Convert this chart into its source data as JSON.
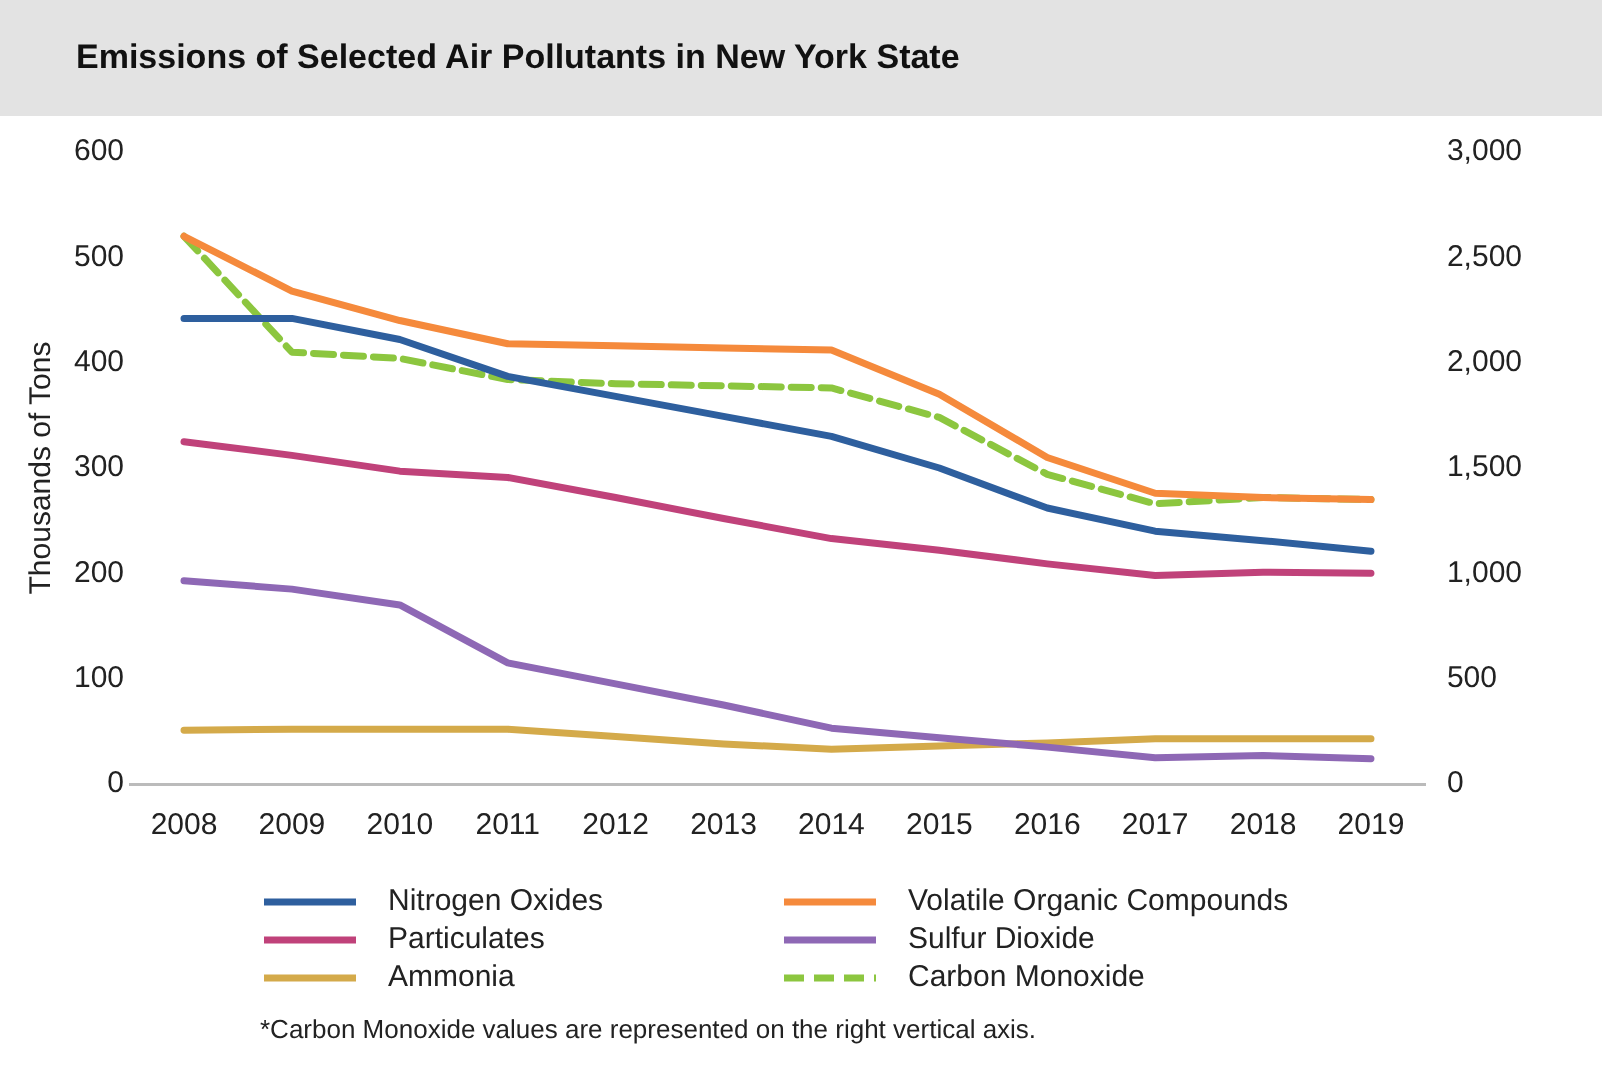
{
  "chart_data": {
    "type": "line",
    "title": "Emissions of Selected Air Pollutants in New York State",
    "ylabel": "Thousands of Tons",
    "categories": [
      "2008",
      "2009",
      "2010",
      "2011",
      "2012",
      "2013",
      "2014",
      "2015",
      "2016",
      "2017",
      "2018",
      "2019"
    ],
    "series": [
      {
        "name": "Nitrogen Oxides",
        "color": "#2e5f9e",
        "values": [
          442,
          442,
          422,
          387,
          368,
          349,
          330,
          300,
          262,
          240,
          231,
          221
        ]
      },
      {
        "name": "Volatile Organic Compounds",
        "color": "#f58a3c",
        "values": [
          520,
          468,
          440,
          418,
          416,
          414,
          412,
          370,
          310,
          276,
          272,
          270
        ]
      },
      {
        "name": "Particulates",
        "color": "#c0427a",
        "values": [
          325,
          312,
          297,
          291,
          272,
          252,
          233,
          222,
          209,
          198,
          201,
          200
        ]
      },
      {
        "name": "Sulfur Dioxide",
        "color": "#8e68b5",
        "values": [
          193,
          185,
          170,
          115,
          95,
          75,
          53,
          44,
          35,
          25,
          27,
          24
        ]
      },
      {
        "name": "Ammonia",
        "color": "#d4aa4a",
        "values": [
          51,
          52,
          52,
          52,
          45,
          38,
          33,
          36,
          39,
          43,
          43,
          43
        ]
      },
      {
        "name": "Carbon Monoxide",
        "color": "#8cc63f",
        "axis": "y2",
        "line_style": "dashed",
        "values": [
          2600,
          2050,
          2020,
          1920,
          1900,
          1890,
          1880,
          1740,
          1470,
          1330,
          1360,
          1350
        ]
      }
    ],
    "ylim": [
      0,
      600
    ],
    "yticks": [
      0,
      100,
      200,
      300,
      400,
      500,
      600
    ],
    "y2lim": [
      0,
      3000
    ],
    "y2ticks": [
      0,
      500,
      {
        "value": 1000,
        "label": "1,000"
      },
      {
        "value": 1500,
        "label": "1,500"
      },
      {
        "value": 2000,
        "label": "2,000"
      },
      {
        "value": 2500,
        "label": "2,500"
      },
      {
        "value": 3000,
        "label": "3,000"
      }
    ],
    "marker": "none",
    "line_style": "solid",
    "legend": "bottom",
    "annotations": [
      "*Carbon Monoxide values are represented on the right vertical axis."
    ]
  }
}
